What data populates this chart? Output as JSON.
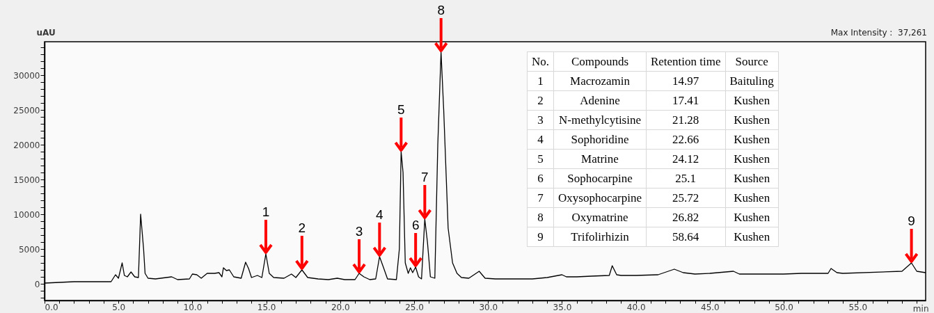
{
  "chart_data": {
    "type": "line",
    "title": "Max Intensity :  37,261",
    "xlabel": "min",
    "ylabel": "uAU",
    "xlim": [
      0,
      59.6
    ],
    "ylim": [
      -2400,
      34800
    ],
    "xticks": [
      {
        "value": 0,
        "label": "0.0"
      },
      {
        "value": 1,
        "label": null
      },
      {
        "value": 2,
        "label": null
      },
      {
        "value": 3,
        "label": null
      },
      {
        "value": 4,
        "label": null
      },
      {
        "value": 5,
        "label": "5.0"
      },
      {
        "value": 6,
        "label": null
      },
      {
        "value": 7,
        "label": null
      },
      {
        "value": 8,
        "label": null
      },
      {
        "value": 9,
        "label": null
      },
      {
        "value": 10,
        "label": "10.0"
      },
      {
        "value": 11,
        "label": null
      },
      {
        "value": 12,
        "label": null
      },
      {
        "value": 13,
        "label": null
      },
      {
        "value": 14,
        "label": null
      },
      {
        "value": 15,
        "label": "15.0"
      },
      {
        "value": 16,
        "label": null
      },
      {
        "value": 17,
        "label": null
      },
      {
        "value": 18,
        "label": null
      },
      {
        "value": 19,
        "label": null
      },
      {
        "value": 20,
        "label": "20.0"
      },
      {
        "value": 21,
        "label": null
      },
      {
        "value": 22,
        "label": null
      },
      {
        "value": 23,
        "label": null
      },
      {
        "value": 24,
        "label": null
      },
      {
        "value": 25,
        "label": "25.0"
      },
      {
        "value": 26,
        "label": null
      },
      {
        "value": 27,
        "label": null
      },
      {
        "value": 28,
        "label": null
      },
      {
        "value": 29,
        "label": null
      },
      {
        "value": 30,
        "label": "30.0"
      },
      {
        "value": 31,
        "label": null
      },
      {
        "value": 32,
        "label": null
      },
      {
        "value": 33,
        "label": null
      },
      {
        "value": 34,
        "label": null
      },
      {
        "value": 35,
        "label": "35.0"
      },
      {
        "value": 36,
        "label": null
      },
      {
        "value": 37,
        "label": null
      },
      {
        "value": 38,
        "label": null
      },
      {
        "value": 39,
        "label": null
      },
      {
        "value": 40,
        "label": "40.0"
      },
      {
        "value": 41,
        "label": null
      },
      {
        "value": 42,
        "label": null
      },
      {
        "value": 43,
        "label": null
      },
      {
        "value": 44,
        "label": null
      },
      {
        "value": 45,
        "label": "45.0"
      },
      {
        "value": 46,
        "label": null
      },
      {
        "value": 47,
        "label": null
      },
      {
        "value": 48,
        "label": null
      },
      {
        "value": 49,
        "label": null
      },
      {
        "value": 50,
        "label": "50.0"
      },
      {
        "value": 51,
        "label": null
      },
      {
        "value": 52,
        "label": null
      },
      {
        "value": 53,
        "label": null
      },
      {
        "value": 54,
        "label": null
      },
      {
        "value": 55,
        "label": "55.0"
      },
      {
        "value": 56,
        "label": null
      },
      {
        "value": 57,
        "label": null
      },
      {
        "value": 58,
        "label": null
      },
      {
        "value": 59,
        "label": null
      }
    ],
    "yticks": [
      {
        "value": -2000,
        "label": null
      },
      {
        "value": -1000,
        "label": null
      },
      0,
      {
        "value": 1000,
        "label": null
      },
      {
        "value": 2000,
        "label": null
      },
      {
        "value": 3000,
        "label": null
      },
      {
        "value": 4000,
        "label": null
      },
      5000,
      {
        "value": 6000,
        "label": null
      },
      {
        "value": 7000,
        "label": null
      },
      {
        "value": 8000,
        "label": null
      },
      {
        "value": 9000,
        "label": null
      },
      10000,
      {
        "value": 11000,
        "label": null
      },
      {
        "value": 12000,
        "label": null
      },
      {
        "value": 13000,
        "label": null
      },
      {
        "value": 14000,
        "label": null
      },
      15000,
      {
        "value": 16000,
        "label": null
      },
      {
        "value": 17000,
        "label": null
      },
      {
        "value": 18000,
        "label": null
      },
      {
        "value": 19000,
        "label": null
      },
      20000,
      {
        "value": 21000,
        "label": null
      },
      {
        "value": 22000,
        "label": null
      },
      {
        "value": 23000,
        "label": null
      },
      {
        "value": 24000,
        "label": null
      },
      25000,
      {
        "value": 26000,
        "label": null
      },
      {
        "value": 27000,
        "label": null
      },
      {
        "value": 28000,
        "label": null
      },
      {
        "value": 29000,
        "label": null
      },
      30000,
      {
        "value": 31000,
        "label": null
      },
      {
        "value": 32000,
        "label": null
      },
      {
        "value": 33000,
        "label": null
      },
      {
        "value": 34000,
        "label": null
      }
    ],
    "series": [
      {
        "color": "#000000",
        "x": [
          0,
          1,
          2,
          2.3,
          2.5,
          4.5,
          4.8,
          5.0,
          5.25,
          5.4,
          5.6,
          5.85,
          6.1,
          6.35,
          6.5,
          6.7,
          6.8,
          7.0,
          7.5,
          8.6,
          9.0,
          9.8,
          10.0,
          10.3,
          10.6,
          11.0,
          11.5,
          11.8,
          12.0,
          12.1,
          12.3,
          12.5,
          12.8,
          13.3,
          13.6,
          13.8,
          14.0,
          14.4,
          14.7,
          14.97,
          15.2,
          15.5,
          16.2,
          16.7,
          17.0,
          17.41,
          17.8,
          18.5,
          19.2,
          19.8,
          20.3,
          21.0,
          21.28,
          21.6,
          22.0,
          22.4,
          22.66,
          22.9,
          23.2,
          23.8,
          24.0,
          24.12,
          24.25,
          24.4,
          24.6,
          24.75,
          24.9,
          25.1,
          25.3,
          25.5,
          25.72,
          25.9,
          26.1,
          26.4,
          26.6,
          26.82,
          27.0,
          27.3,
          27.6,
          27.9,
          28.2,
          28.7,
          29.4,
          29.8,
          30.5,
          32,
          33,
          34,
          35,
          35.3,
          36,
          37,
          38.2,
          38.4,
          38.7,
          39,
          40,
          41.5,
          42.6,
          43.2,
          44,
          45,
          46.6,
          47,
          50,
          51.2,
          53.0,
          53.2,
          53.6,
          54,
          58,
          58.64,
          59,
          59.6
        ],
        "values": [
          100,
          200,
          300,
          300,
          300,
          300,
          1300,
          800,
          3000,
          1200,
          1000,
          1700,
          1000,
          900,
          10000,
          5000,
          1500,
          800,
          700,
          1000,
          600,
          700,
          1400,
          1300,
          800,
          1500,
          1500,
          1600,
          1000,
          2300,
          1900,
          2000,
          1000,
          800,
          3100,
          2200,
          900,
          1200,
          900,
          4300,
          1500,
          900,
          800,
          1400,
          900,
          2000,
          900,
          700,
          600,
          800,
          600,
          600,
          1500,
          1000,
          600,
          700,
          3900,
          2500,
          700,
          600,
          5000,
          19000,
          16000,
          3000,
          1500,
          2300,
          1600,
          2400,
          1000,
          700,
          9300,
          6000,
          1000,
          800,
          20000,
          33300,
          25000,
          8000,
          3000,
          1500,
          900,
          800,
          1800,
          800,
          700,
          700,
          700,
          900,
          1300,
          1000,
          1000,
          1100,
          1200,
          2600,
          1300,
          1200,
          1200,
          1300,
          2100,
          1600,
          1400,
          1500,
          1800,
          1400,
          1400,
          1500,
          1500,
          2200,
          1600,
          1500,
          1800,
          3000,
          1800,
          1600
        ]
      }
    ],
    "annotations": [
      {
        "text": "1",
        "x": 14.97,
        "y": 4300
      },
      {
        "text": "2",
        "x": 17.41,
        "y": 2000
      },
      {
        "text": "3",
        "x": 21.28,
        "y": 1500
      },
      {
        "text": "4",
        "x": 22.66,
        "y": 3900
      },
      {
        "text": "5",
        "x": 24.12,
        "y": 19000
      },
      {
        "text": "6",
        "x": 25.1,
        "y": 2400
      },
      {
        "text": "7",
        "x": 25.72,
        "y": 9300
      },
      {
        "text": "8",
        "x": 26.82,
        "y": 33300
      },
      {
        "text": "9",
        "x": 58.64,
        "y": 3000
      },
      "No.",
      "Compounds",
      "Retention time",
      "Source",
      "1",
      "Macrozamin",
      "14.97",
      "Baituling",
      "2",
      "Adenine",
      "17.41",
      "Kushen",
      "3",
      "N-methylcytisine",
      "21.28",
      "Kushen",
      "4",
      "Sophoridine",
      "22.66",
      "Kushen",
      "5",
      "Matrine",
      "24.12",
      "Kushen",
      "6",
      "Sophocarpine",
      "25.1",
      "Kushen",
      "7",
      "Oxysophocarpine",
      "25.72",
      "Kushen",
      "8",
      "Oxymatrine",
      "26.82",
      "Kushen",
      "9",
      "Trifolirhizin",
      "58.64",
      "Kushen"
    ]
  }
}
